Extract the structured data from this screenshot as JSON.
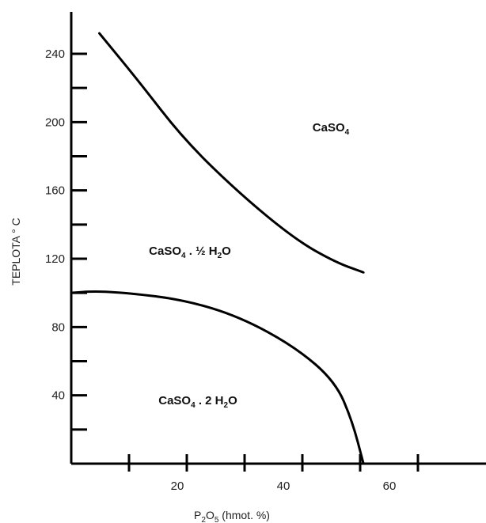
{
  "chart_data": {
    "type": "line",
    "title": "",
    "xlabel": {
      "main": "P",
      "sub1": "2",
      "mid": "O",
      "sub2": "5",
      "tail": " (hmot. %)"
    },
    "ylabel": "TEPLOTA ° C",
    "xlim": [
      0,
      80
    ],
    "ylim": [
      0,
      260
    ],
    "x_ticks": [
      10,
      20,
      30,
      40,
      50,
      60
    ],
    "x_tick_labels": [
      "20",
      "40",
      "60"
    ],
    "y_ticks": [
      20,
      40,
      60,
      80,
      100,
      120,
      140,
      160,
      180,
      200,
      220,
      240
    ],
    "y_tick_labels": [
      "40",
      "80",
      "120",
      "160",
      "200",
      "240"
    ],
    "grid": false,
    "series": [
      {
        "x": [
          5,
          12,
          20,
          30,
          40,
          47,
          52
        ],
        "y": [
          252,
          224,
          190,
          158,
          131,
          118,
          112
        ]
      },
      {
        "x": [
          0,
          4,
          10,
          20,
          30,
          40,
          47,
          50,
          52
        ],
        "y": [
          100,
          101,
          100,
          96,
          86,
          68,
          48,
          25,
          0
        ]
      }
    ],
    "annotations": [
      {
        "base": "CaSO",
        "sub": "4",
        "rest": "",
        "sub2": "",
        "tail": "",
        "x": 45,
        "y": 200
      },
      {
        "base": "CaSO",
        "sub": "4",
        "rest": " . ½ H",
        "sub2": "2",
        "tail": "O",
        "x": 15,
        "y": 128
      },
      {
        "base": "CaSO",
        "sub": "4",
        "rest": " . 2 H",
        "sub2": "2",
        "tail": "O",
        "x": 15,
        "y": 42
      }
    ],
    "colors": {
      "axis": "#000000",
      "curve": "#000000"
    }
  }
}
